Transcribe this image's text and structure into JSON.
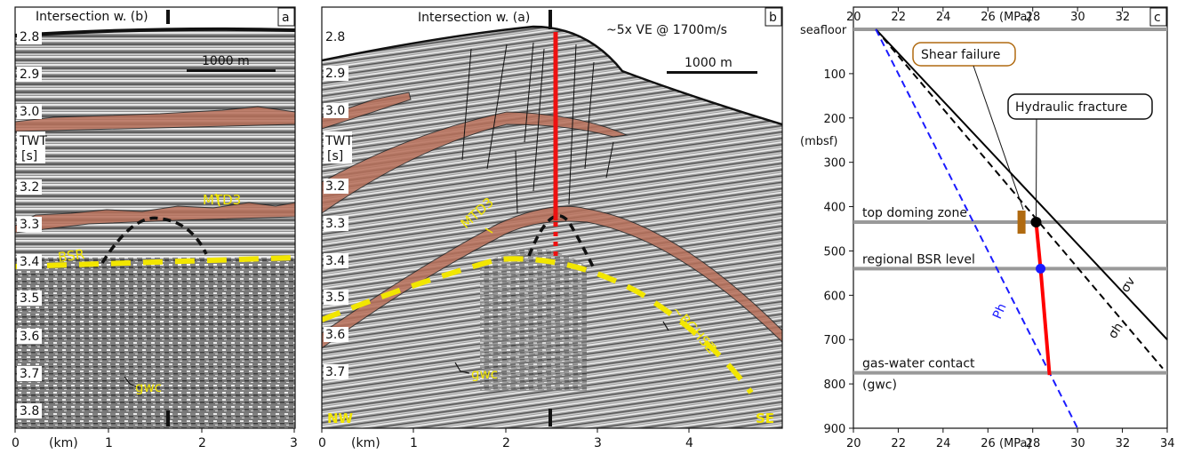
{
  "panel_a": {
    "letter": "a",
    "intersection_label": "Intersection w. (b)",
    "scale_bar": "1000 m",
    "twt_label_1": "TWT",
    "twt_label_2": "[s]",
    "y_ticks": [
      "2.8",
      "2.9",
      "3.0",
      "3.2",
      "3.3",
      "3.4",
      "3.5",
      "3.6",
      "3.7",
      "3.8"
    ],
    "x_ticks": [
      "0",
      "1",
      "2",
      "3"
    ],
    "x_unit": "(km)",
    "mtd_label": "MTD3",
    "bsr_label": "BSR",
    "gwc_label": "gwc"
  },
  "panel_b": {
    "letter": "b",
    "intersection_label": "Intersection w. (a)",
    "ve_note": "~5x VE @ 1700m/s",
    "scale_bar": "1000 m",
    "twt_label_1": "TWT",
    "twt_label_2": "[s]",
    "y_ticks": [
      "2.8",
      "2.9",
      "3.0",
      "3.2",
      "3.3",
      "3.4",
      "3.5",
      "3.6",
      "3.7"
    ],
    "x_ticks": [
      "0",
      "1",
      "2",
      "3",
      "4"
    ],
    "x_unit": "(km)",
    "mtd_label": "MTD3",
    "bghsz_label": "~BGHSZ",
    "gwc_label": "gwc",
    "nw_label": "NW",
    "se_label": "SE"
  },
  "panel_c": {
    "letter": "c",
    "chart_data": {
      "type": "line",
      "xlabel": "(MPa)",
      "ylabel": "(mbsf)",
      "x_ticks": [
        "20",
        "22",
        "24",
        "26",
        "28",
        "30",
        "32"
      ],
      "x_ticks_bottom": [
        "20",
        "22",
        "24",
        "26",
        "28",
        "30",
        "32",
        "34"
      ],
      "y_ticks": [
        "100",
        "200",
        "300",
        "400",
        "500",
        "600",
        "700",
        "800",
        "900"
      ],
      "xlim": [
        20,
        34
      ],
      "ylim": [
        900,
        0
      ],
      "seafloor_label": "seafloor",
      "series": [
        {
          "name": "σv",
          "color": "#000000",
          "style": "solid",
          "x": [
            21.0,
            34.0
          ],
          "y": [
            0,
            700
          ]
        },
        {
          "name": "σh",
          "color": "#000000",
          "style": "dashed",
          "x": [
            21.0,
            33.8
          ],
          "y": [
            0,
            765
          ]
        },
        {
          "name": "Ph",
          "color": "#1a1aff",
          "style": "dashed",
          "x": [
            21.0,
            30.0
          ],
          "y": [
            0,
            900
          ]
        },
        {
          "name": "",
          "color": "#ff0000",
          "style": "solid",
          "x": [
            28.15,
            28.35,
            28.75
          ],
          "y": [
            435,
            540,
            780
          ]
        }
      ],
      "horizontal_lines": [
        {
          "label": "top doming zone",
          "y": 435
        },
        {
          "label": "regional BSR level",
          "y": 540
        },
        {
          "label": "gas-water contact",
          "label2": "(gwc)",
          "y": 775
        }
      ],
      "annotations": [
        {
          "label": "Shear failure",
          "x": 27.5,
          "y": 435
        },
        {
          "label": "Hydraulic fracture",
          "x": 28.15,
          "y": 435
        }
      ],
      "sv_label": "σv",
      "sh_label": "σh",
      "ph_label": "Ph"
    }
  }
}
